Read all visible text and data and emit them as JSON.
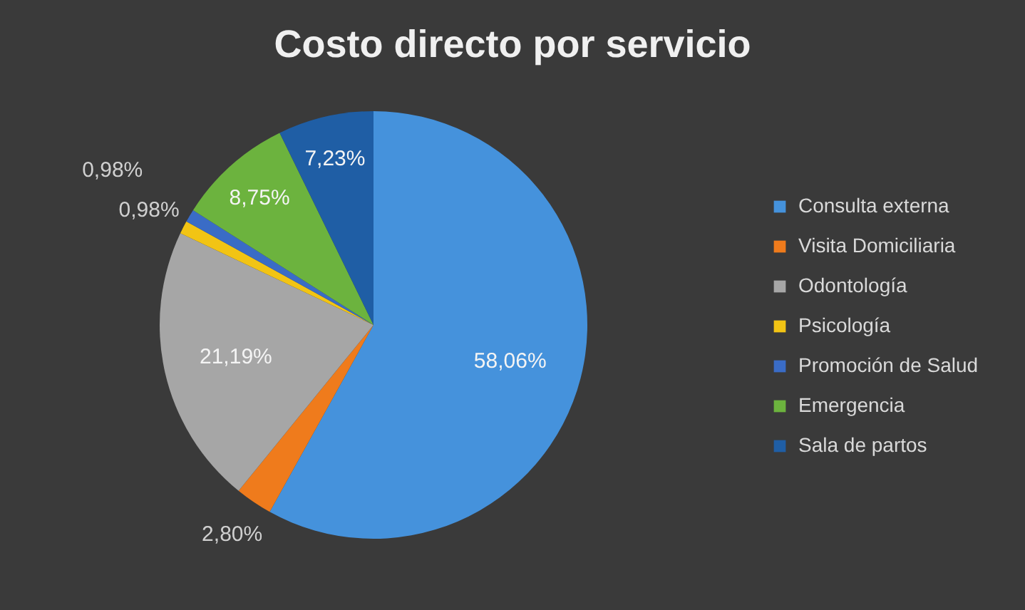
{
  "chart_data": {
    "type": "pie",
    "title": "Costo directo por servicio",
    "categories": [
      "Consulta externa",
      "Visita Domiciliaria",
      "Odontología",
      "Psicología",
      "Promoción de Salud",
      "Emergencia",
      "Sala de partos"
    ],
    "values": [
      58.06,
      2.8,
      21.19,
      0.98,
      0.98,
      8.75,
      7.23
    ],
    "colors": [
      "#4592dc",
      "#ef7b1c",
      "#a6a6a6",
      "#f2c414",
      "#3a6cc6",
      "#6cb33e",
      "#1f5ea5"
    ],
    "value_labels": [
      "58,06%",
      "2,80%",
      "21,19%",
      "0,98%",
      "0,98%",
      "8,75%",
      "7,23%"
    ],
    "legend": "right"
  }
}
